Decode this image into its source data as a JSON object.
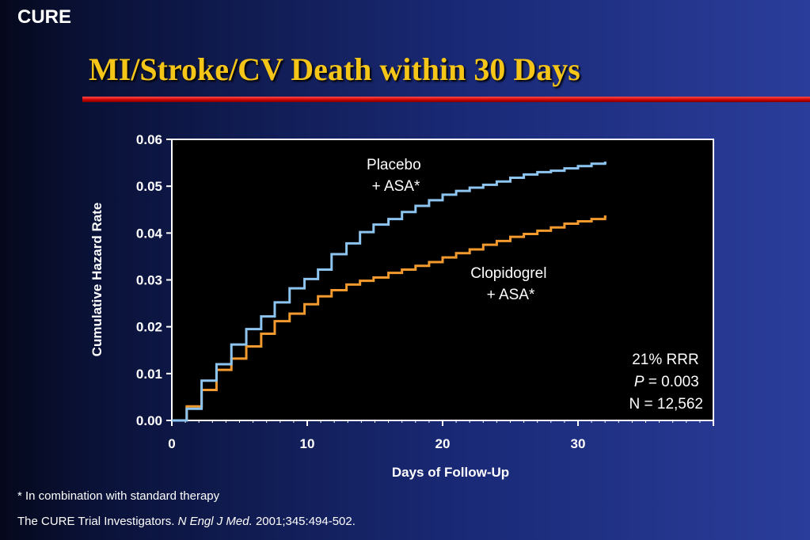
{
  "slide": {
    "brand": "CURE",
    "title": "MI/Stroke/CV Death within 30 Days",
    "footnote": "* In combination with standard therapy",
    "citation": {
      "authors": "The CURE Trial Investigators. ",
      "journal": "N Engl J Med.",
      "details": " 2001;345:494-502."
    },
    "colors": {
      "title": "#f5c518",
      "rule": "#d00000",
      "placebo": "#8ec5f0",
      "clopidogrel": "#f39a2e",
      "plot_background": "#000000"
    }
  },
  "chart_data": {
    "type": "line",
    "step": true,
    "xlabel": "Days of Follow-Up",
    "ylabel": "Cumulative Hazard Rate",
    "xlim": [
      0,
      40
    ],
    "ylim": [
      0,
      0.06
    ],
    "x_ticks": [
      0,
      10,
      20,
      30
    ],
    "y_ticks": [
      "0.00",
      "0.01",
      "0.02",
      "0.03",
      "0.04",
      "0.05",
      "0.06"
    ],
    "grid": false,
    "series": [
      {
        "name": "Placebo + ASA*",
        "label_lines": [
          "Placebo",
          "+ ASA*"
        ],
        "x": [
          0,
          1.1,
          2.2,
          3.3,
          4.4,
          5.5,
          6.6,
          7.6,
          8.7,
          9.8,
          10.8,
          11.8,
          12.9,
          13.9,
          14.9,
          16,
          17,
          18,
          19,
          20,
          21,
          22,
          23,
          24,
          25,
          26,
          27,
          28,
          29,
          30,
          31,
          32
        ],
        "y": [
          0,
          0.0025,
          0.0085,
          0.012,
          0.0162,
          0.0195,
          0.0222,
          0.0252,
          0.0282,
          0.0302,
          0.0322,
          0.0355,
          0.0378,
          0.0402,
          0.0418,
          0.043,
          0.0445,
          0.0458,
          0.047,
          0.0482,
          0.049,
          0.0497,
          0.0503,
          0.051,
          0.0518,
          0.0525,
          0.053,
          0.0533,
          0.0538,
          0.0543,
          0.0548,
          0.055
        ]
      },
      {
        "name": "Clopidogrel + ASA*",
        "label_lines": [
          "Clopidogrel",
          "+ ASA*"
        ],
        "x": [
          0,
          1.1,
          2.2,
          3.3,
          4.4,
          5.5,
          6.6,
          7.6,
          8.7,
          9.8,
          10.8,
          11.8,
          12.9,
          13.9,
          14.9,
          16,
          17,
          18,
          19,
          20,
          21,
          22,
          23,
          24,
          25,
          26,
          27,
          28,
          29,
          30,
          31,
          32
        ],
        "y": [
          0,
          0.003,
          0.0065,
          0.0108,
          0.0132,
          0.0158,
          0.0185,
          0.0212,
          0.0228,
          0.0248,
          0.0265,
          0.0278,
          0.029,
          0.0298,
          0.0305,
          0.0315,
          0.0322,
          0.033,
          0.0338,
          0.0348,
          0.0357,
          0.0365,
          0.0375,
          0.0383,
          0.0392,
          0.0398,
          0.0405,
          0.0412,
          0.042,
          0.0425,
          0.043,
          0.0435
        ]
      }
    ],
    "annotations": {
      "rrr": "21% RRR",
      "p_label": "P",
      "p_value": " = 0.003",
      "n": "N = 12,562"
    }
  }
}
